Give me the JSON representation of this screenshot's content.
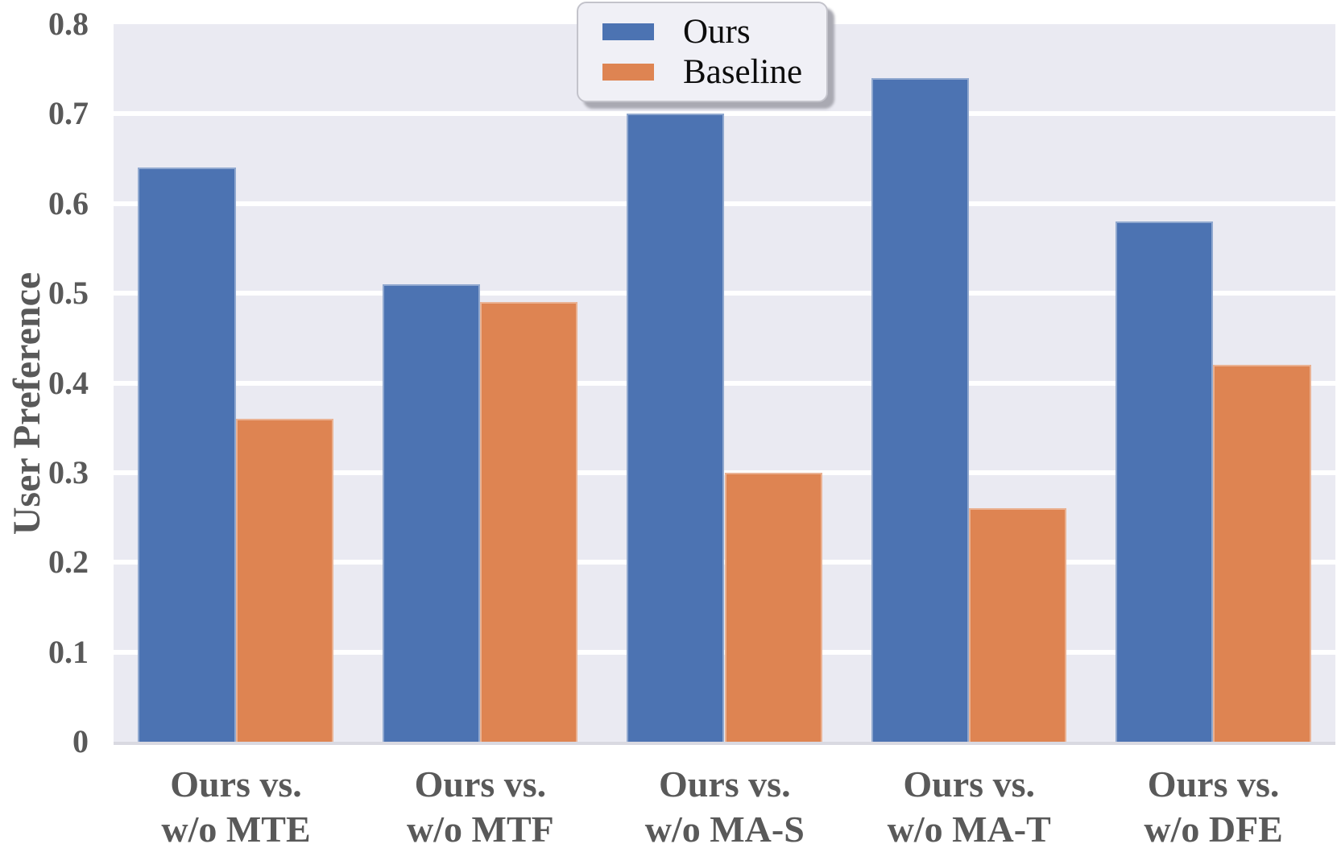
{
  "chart_data": {
    "type": "bar",
    "title": "",
    "ylabel": "User Preference",
    "xlabel": "",
    "ylim": [
      0,
      0.8
    ],
    "grid": true,
    "plot_background": "#eaeaf2",
    "gridline_color": "#ffffff",
    "axis_text_color": "#595959",
    "yticks": [
      {
        "label": "0",
        "value": 0
      },
      {
        "label": "0.1",
        "value": 0.1
      },
      {
        "label": "0.2",
        "value": 0.2
      },
      {
        "label": "0.3",
        "value": 0.3
      },
      {
        "label": "0.4",
        "value": 0.4
      },
      {
        "label": "0.5",
        "value": 0.5
      },
      {
        "label": "0.6",
        "value": 0.6
      },
      {
        "label": "0.7",
        "value": 0.7
      },
      {
        "label": "0.8",
        "value": 0.8
      }
    ],
    "categories": [
      {
        "line1": "Ours vs.",
        "line2": "w/o MTE"
      },
      {
        "line1": "Ours vs.",
        "line2": "w/o MTF"
      },
      {
        "line1": "Ours vs.",
        "line2": "w/o MA-S"
      },
      {
        "line1": "Ours vs.",
        "line2": "w/o MA-T"
      },
      {
        "line1": "Ours vs.",
        "line2": "w/o DFE"
      }
    ],
    "series": [
      {
        "name": "Ours",
        "color": "#4c73b2",
        "values": [
          0.64,
          0.51,
          0.7,
          0.74,
          0.58
        ]
      },
      {
        "name": "Baseline",
        "color": "#de8452",
        "values": [
          0.36,
          0.49,
          0.3,
          0.26,
          0.42
        ]
      }
    ],
    "legend": {
      "position": "top-center"
    }
  }
}
